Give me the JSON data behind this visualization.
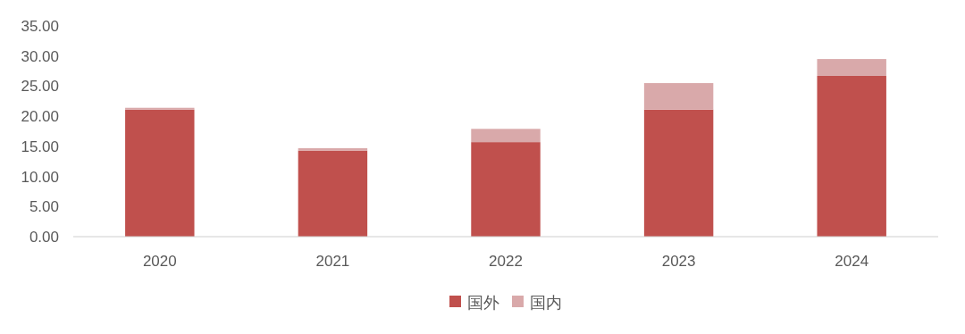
{
  "chart_data": {
    "type": "bar",
    "stacked": true,
    "categories": [
      "2020",
      "2021",
      "2022",
      "2023",
      "2024"
    ],
    "series": [
      {
        "name": "国外",
        "color": "#c0504d",
        "values": [
          21.1,
          14.3,
          15.7,
          21.1,
          26.7
        ]
      },
      {
        "name": "国内",
        "color": "#d9a9aa",
        "values": [
          0.3,
          0.4,
          2.2,
          4.4,
          2.8
        ]
      }
    ],
    "ylim": [
      0,
      35
    ],
    "yticks": [
      {
        "value": 0,
        "label": "0.00"
      },
      {
        "value": 5,
        "label": "5.00"
      },
      {
        "value": 10,
        "label": "10.00"
      },
      {
        "value": 15,
        "label": "15.00"
      },
      {
        "value": 20,
        "label": "20.00"
      },
      {
        "value": 25,
        "label": "25.00"
      },
      {
        "value": 30,
        "label": "30.00"
      },
      {
        "value": 35,
        "label": "35.00"
      }
    ],
    "grid": false,
    "legend": "bottom"
  }
}
